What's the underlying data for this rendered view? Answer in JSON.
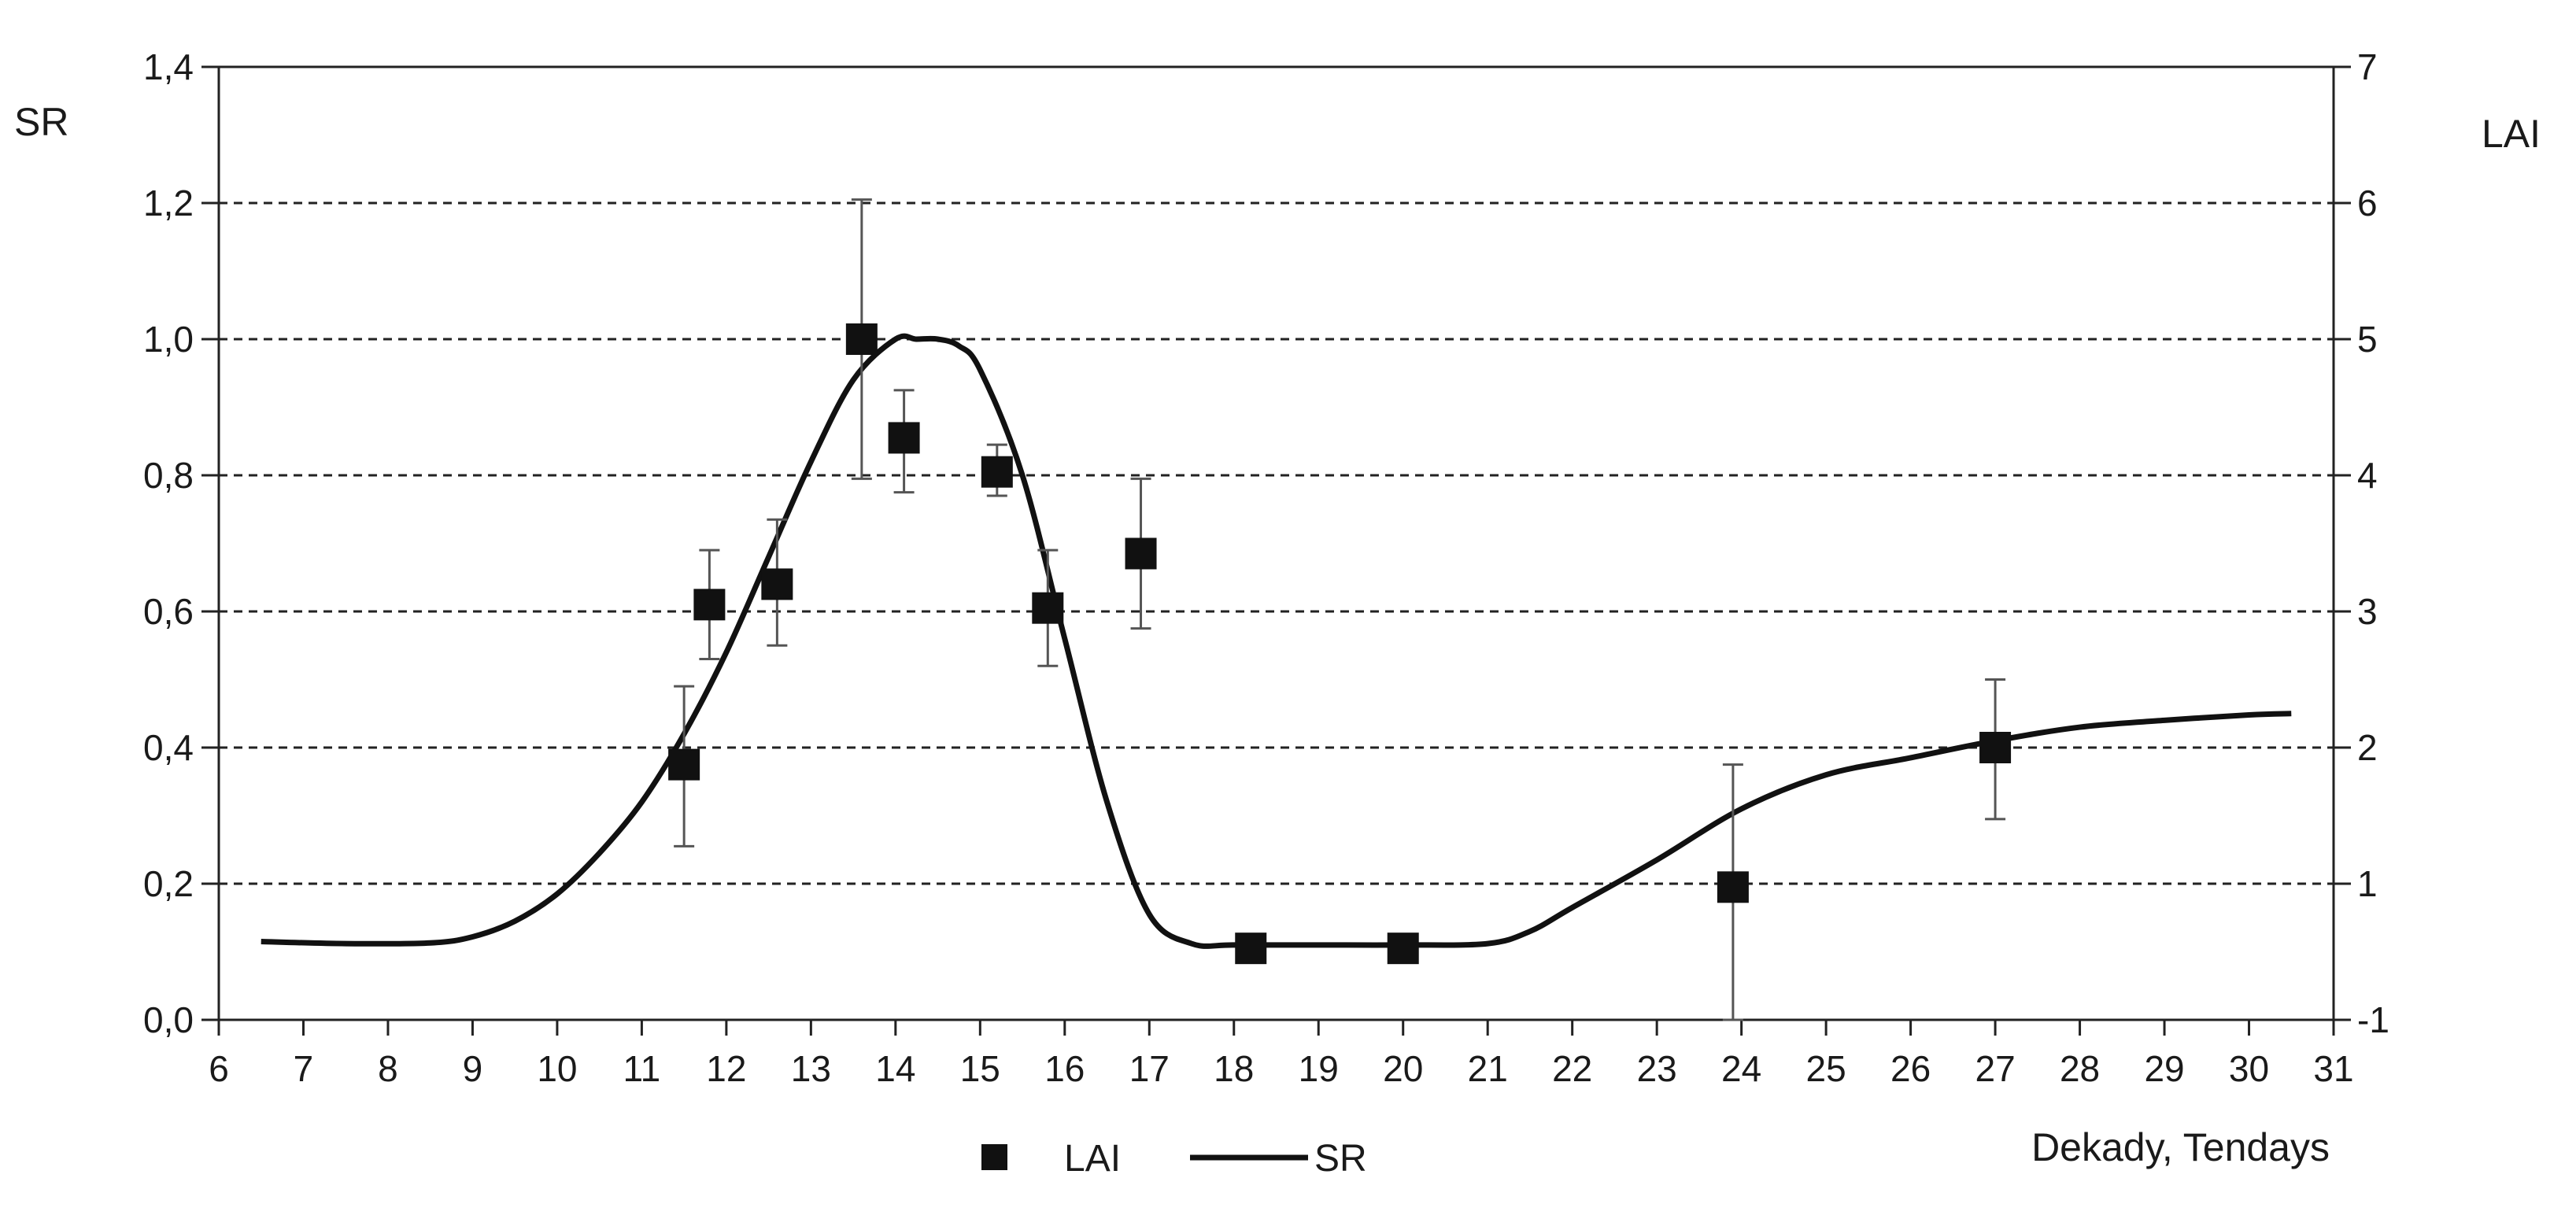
{
  "chart_data": {
    "type": "line",
    "title": "",
    "xlabel": "Dekady, Tendays",
    "ylabel_left": "SR",
    "ylabel_right": "LAI",
    "xlim": [
      6,
      31
    ],
    "ylim_left": [
      0,
      1.4
    ],
    "ylim_right": [
      -1,
      7
    ],
    "x_ticks": [
      "6",
      "7",
      "8",
      "9",
      "10",
      "11",
      "12",
      "13",
      "14",
      "15",
      "16",
      "17",
      "18",
      "19",
      "20",
      "21",
      "22",
      "23",
      "24",
      "25",
      "26",
      "27",
      "28",
      "29",
      "30",
      "31"
    ],
    "y_left_ticks": [
      "0,0",
      "0,2",
      "0,4",
      "0,6",
      "0,8",
      "1,0",
      "1,2",
      "1,4"
    ],
    "y_right_ticks": [
      "-1",
      "1",
      "2",
      "3",
      "4",
      "5",
      "6",
      "7"
    ],
    "grid": "horizontal dashed",
    "legend": "bottom",
    "series": [
      {
        "name": "LAI",
        "kind": "scatter-errorbars",
        "axis": "left",
        "points": [
          {
            "x": 11.5,
            "y": 0.375,
            "err_low": 0.255,
            "err_high": 0.49
          },
          {
            "x": 11.8,
            "y": 0.61,
            "err_low": 0.53,
            "err_high": 0.69
          },
          {
            "x": 12.6,
            "y": 0.64,
            "err_low": 0.55,
            "err_high": 0.735
          },
          {
            "x": 13.6,
            "y": 1.0,
            "err_low": 0.795,
            "err_high": 1.205
          },
          {
            "x": 14.1,
            "y": 0.855,
            "err_low": 0.775,
            "err_high": 0.925
          },
          {
            "x": 15.2,
            "y": 0.805,
            "err_low": 0.77,
            "err_high": 0.845
          },
          {
            "x": 15.8,
            "y": 0.605,
            "err_low": 0.52,
            "err_high": 0.69
          },
          {
            "x": 16.9,
            "y": 0.685,
            "err_low": 0.575,
            "err_high": 0.795
          },
          {
            "x": 18.2,
            "y": 0.105,
            "err_low": 0.105,
            "err_high": 0.105
          },
          {
            "x": 20.0,
            "y": 0.105,
            "err_low": 0.105,
            "err_high": 0.105
          },
          {
            "x": 23.9,
            "y": 0.195,
            "err_low": 0.0,
            "err_high": 0.375
          },
          {
            "x": 27.0,
            "y": 0.4,
            "err_low": 0.295,
            "err_high": 0.5
          }
        ]
      },
      {
        "name": "SR",
        "kind": "line",
        "axis": "left",
        "x": [
          6.5,
          7.5,
          8.5,
          9.0,
          9.5,
          10.0,
          10.5,
          11.0,
          11.5,
          12.0,
          12.5,
          13.0,
          13.5,
          14.0,
          14.25,
          14.5,
          14.75,
          15.0,
          15.5,
          16.0,
          16.5,
          17.0,
          17.5,
          18.0,
          19.0,
          20.0,
          21.0,
          21.5,
          22.0,
          23.0,
          24.0,
          25.0,
          26.0,
          27.0,
          28.0,
          29.0,
          30.0,
          30.5
        ],
        "y": [
          0.115,
          0.112,
          0.113,
          0.122,
          0.145,
          0.185,
          0.245,
          0.32,
          0.42,
          0.54,
          0.68,
          0.82,
          0.94,
          1.0,
          1.0,
          1.0,
          0.99,
          0.955,
          0.8,
          0.56,
          0.32,
          0.155,
          0.112,
          0.11,
          0.11,
          0.11,
          0.112,
          0.13,
          0.165,
          0.235,
          0.31,
          0.36,
          0.385,
          0.41,
          0.43,
          0.44,
          0.448,
          0.45
        ]
      }
    ]
  }
}
